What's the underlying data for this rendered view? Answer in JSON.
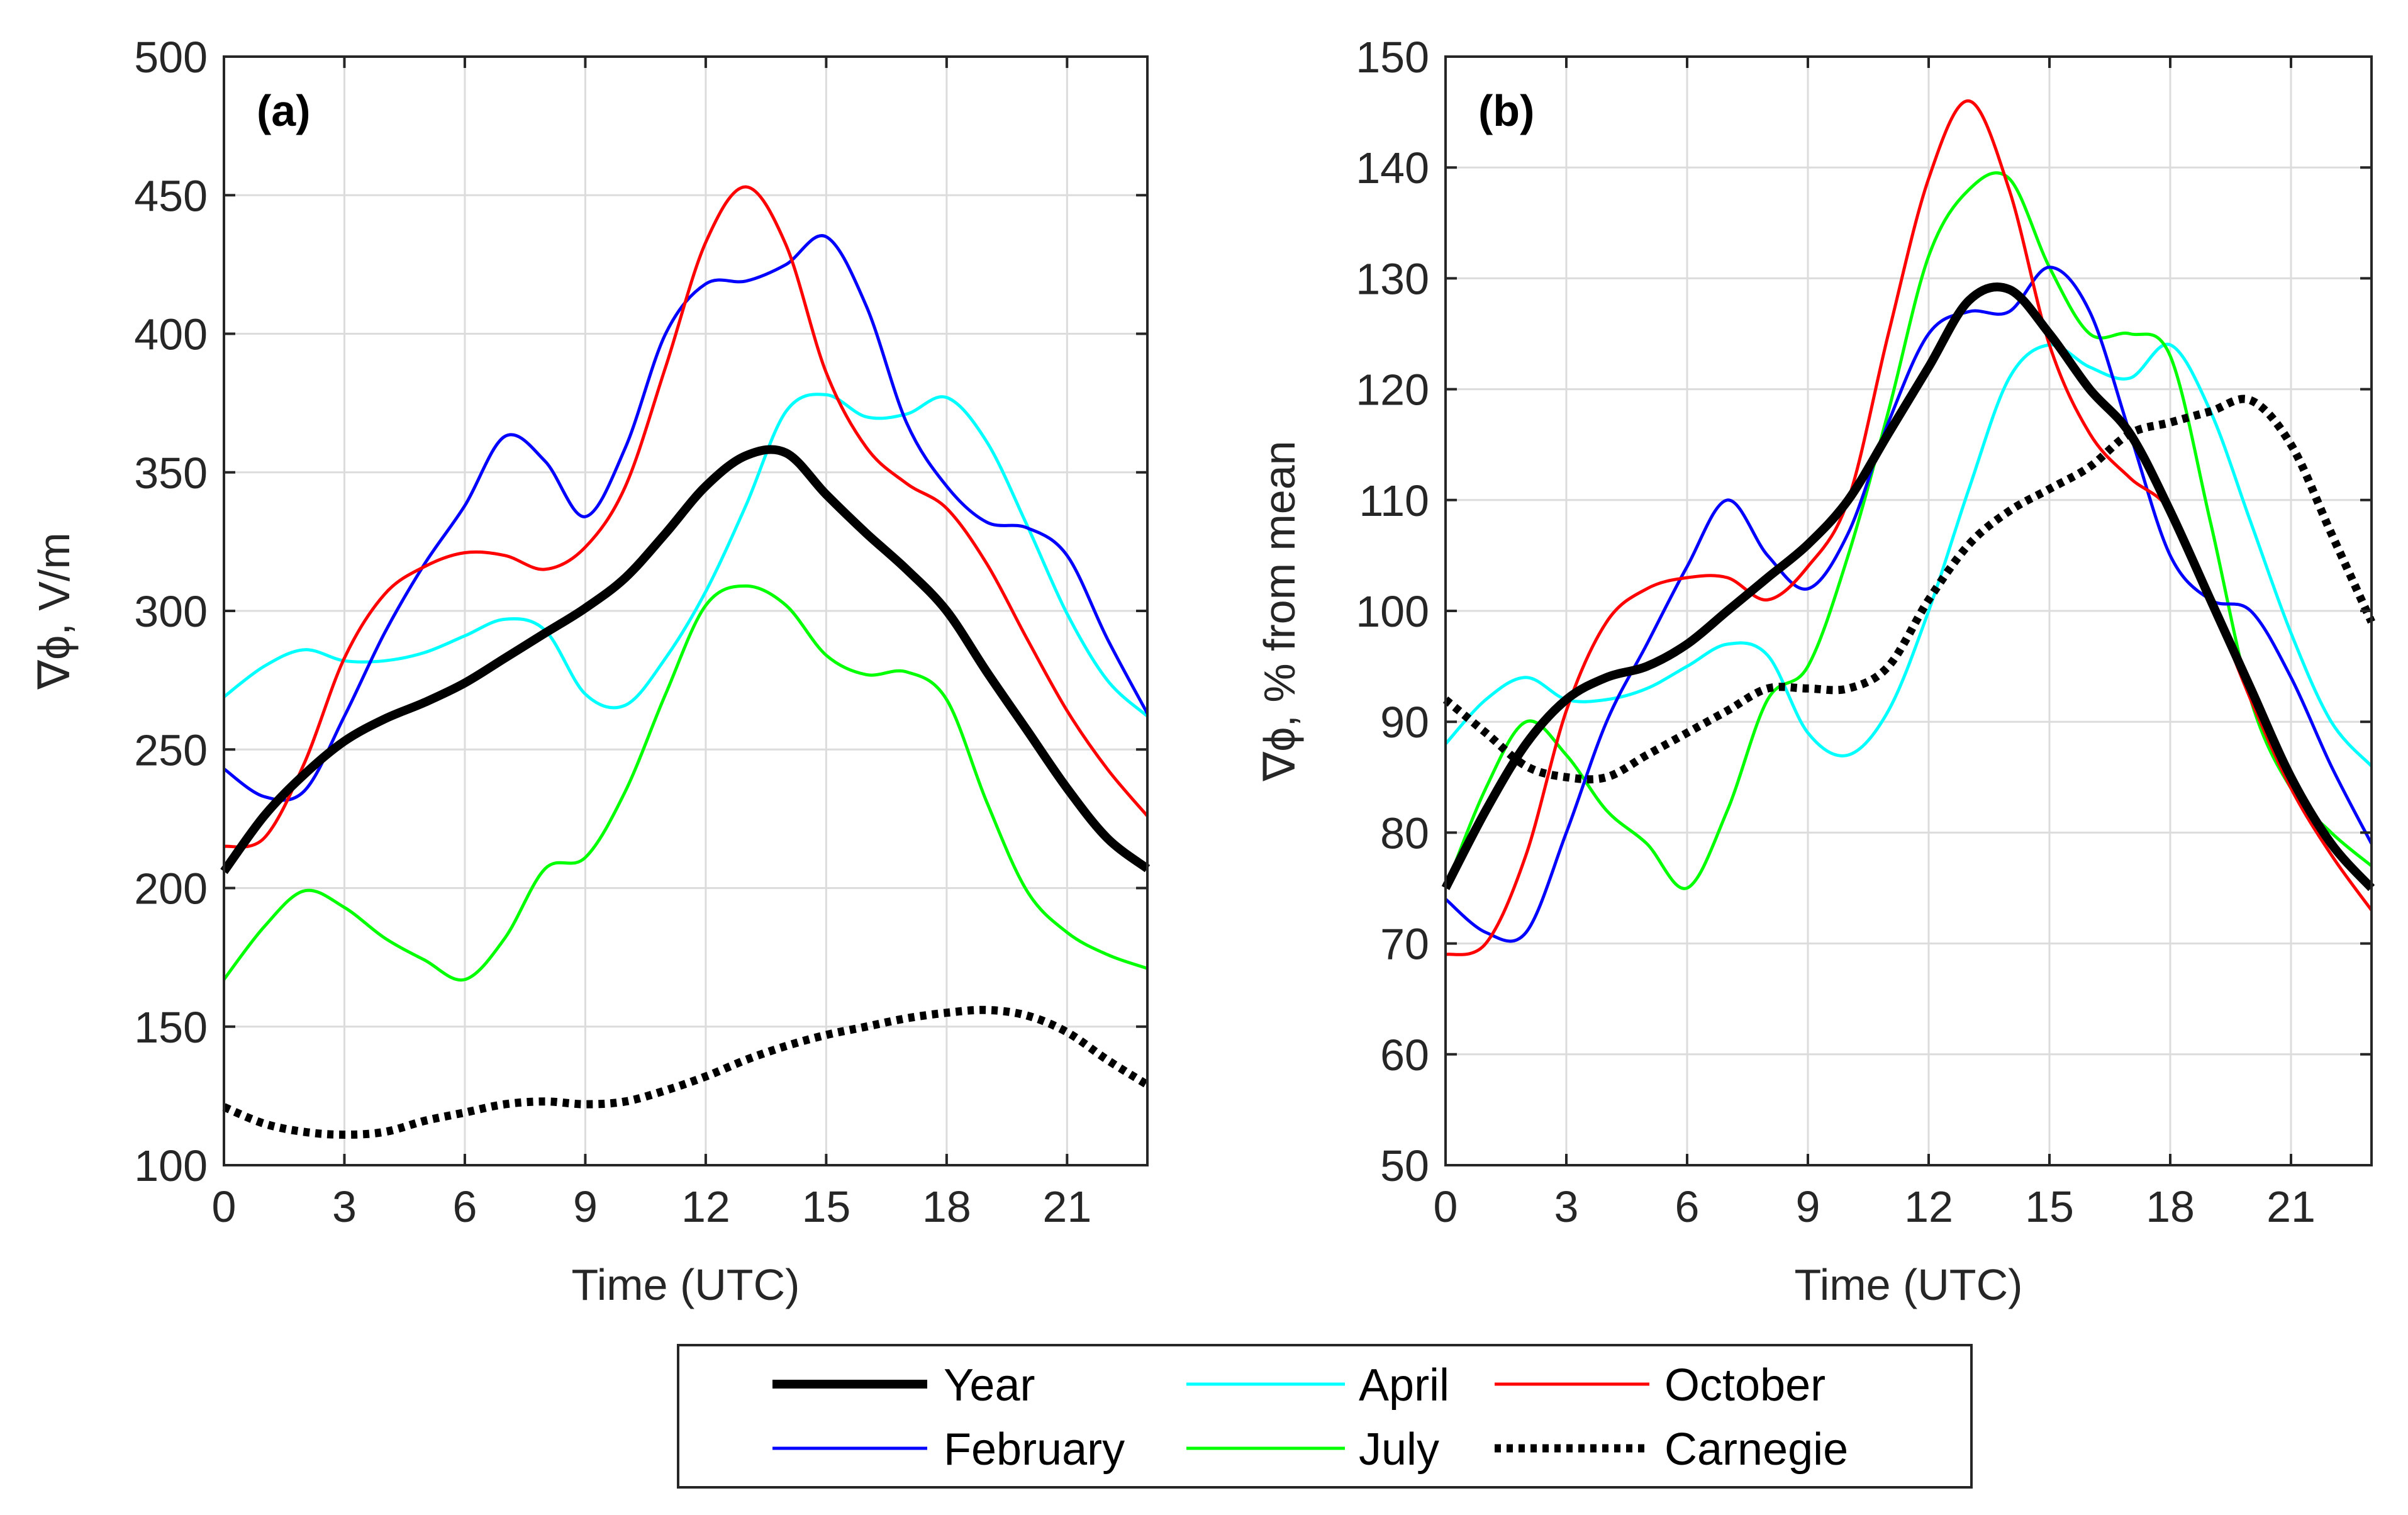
{
  "chart_data": [
    {
      "type": "line",
      "panel_label": "(a)",
      "xlabel": "Time (UTC)",
      "ylabel": "∇ϕ, V/m",
      "xlim": [
        0,
        23
      ],
      "ylim": [
        100,
        500
      ],
      "xticks": [
        0,
        3,
        6,
        9,
        12,
        15,
        18,
        21
      ],
      "yticks": [
        100,
        150,
        200,
        250,
        300,
        350,
        400,
        450,
        500
      ],
      "grid": true,
      "x": [
        0,
        1,
        2,
        3,
        4,
        5,
        6,
        7,
        8,
        9,
        10,
        11,
        12,
        13,
        14,
        15,
        16,
        17,
        18,
        19,
        20,
        21,
        22,
        23
      ],
      "series": [
        {
          "name": "April",
          "color": "#00FFFF",
          "style": "solid",
          "values": [
            269,
            280,
            286,
            282,
            282,
            285,
            291,
            297,
            293,
            270,
            266,
            283,
            307,
            338,
            372,
            378,
            370,
            371,
            377,
            361,
            331,
            299,
            275,
            262
          ]
        },
        {
          "name": "July",
          "color": "#00FF00",
          "style": "solid",
          "values": [
            167,
            186,
            199,
            193,
            182,
            174,
            167,
            182,
            207,
            211,
            235,
            270,
            302,
            309,
            302,
            284,
            277,
            278,
            268,
            231,
            199,
            184,
            176,
            171
          ]
        },
        {
          "name": "February",
          "color": "#0000FF",
          "style": "solid",
          "values": [
            243,
            233,
            235,
            262,
            292,
            317,
            338,
            363,
            354,
            334,
            359,
            400,
            418,
            419,
            425,
            435,
            410,
            368,
            345,
            332,
            330,
            320,
            290,
            263
          ]
        },
        {
          "name": "October",
          "color": "#FF0000",
          "style": "solid",
          "values": [
            215,
            218,
            245,
            283,
            306,
            316,
            321,
            320,
            315,
            323,
            345,
            388,
            433,
            453,
            432,
            386,
            359,
            346,
            337,
            317,
            290,
            264,
            243,
            226
          ]
        },
        {
          "name": "Year",
          "color": "#000000",
          "style": "thick",
          "values": [
            206,
            226,
            241,
            253,
            261,
            267,
            274,
            283,
            292,
            301,
            312,
            328,
            345,
            356,
            357,
            342,
            328,
            315,
            300,
            278,
            257,
            236,
            218,
            207
          ]
        },
        {
          "name": "Carnegie",
          "color": "#000000",
          "style": "dotted",
          "values": [
            121,
            115,
            112,
            111,
            112,
            116,
            119,
            122,
            123,
            122,
            123,
            127,
            132,
            138,
            143,
            147,
            150,
            153,
            155,
            156,
            154,
            148,
            138,
            129
          ]
        }
      ]
    },
    {
      "type": "line",
      "panel_label": "(b)",
      "xlabel": "Time (UTC)",
      "ylabel": "∇ϕ, % from mean",
      "xlim": [
        0,
        23
      ],
      "ylim": [
        50,
        150
      ],
      "xticks": [
        0,
        3,
        6,
        9,
        12,
        15,
        18,
        21
      ],
      "yticks": [
        50,
        60,
        70,
        80,
        90,
        100,
        110,
        120,
        130,
        140,
        150
      ],
      "grid": true,
      "x": [
        0,
        1,
        2,
        3,
        4,
        5,
        6,
        7,
        8,
        9,
        10,
        11,
        12,
        13,
        14,
        15,
        16,
        17,
        18,
        19,
        20,
        21,
        22,
        23
      ],
      "series": [
        {
          "name": "April",
          "color": "#00FFFF",
          "style": "solid",
          "values": [
            88,
            92,
            94,
            92,
            92,
            93,
            95,
            97,
            96,
            89,
            87,
            91,
            100,
            111,
            121,
            124,
            122,
            121,
            124,
            118,
            108,
            98,
            90,
            86
          ]
        },
        {
          "name": "July",
          "color": "#00FF00",
          "style": "solid",
          "values": [
            75,
            84,
            90,
            87,
            82,
            79,
            75,
            82,
            92,
            95,
            105,
            118,
            132,
            138,
            139,
            131,
            125,
            125,
            123,
            108,
            92,
            84,
            80,
            77
          ]
        },
        {
          "name": "February",
          "color": "#0000FF",
          "style": "solid",
          "values": [
            74,
            71,
            71,
            80,
            90,
            97,
            104,
            110,
            105,
            102,
            107,
            117,
            125,
            127,
            127,
            131,
            127,
            116,
            105,
            101,
            100,
            94,
            86,
            79
          ]
        },
        {
          "name": "October",
          "color": "#FF0000",
          "style": "solid",
          "values": [
            69,
            70,
            78,
            91,
            99,
            102,
            103,
            103,
            101,
            104,
            110,
            125,
            139,
            146,
            138,
            124,
            116,
            112,
            109,
            101,
            92,
            84,
            78,
            73
          ]
        },
        {
          "name": "Year",
          "color": "#000000",
          "style": "thick",
          "values": [
            75,
            82,
            88,
            92,
            94,
            95,
            97,
            100,
            103,
            106,
            110,
            116,
            122,
            128,
            129,
            125,
            120,
            116,
            109,
            101,
            93,
            85,
            79,
            75
          ]
        },
        {
          "name": "Carnegie",
          "color": "#000000",
          "style": "dotted",
          "values": [
            92,
            89,
            86,
            85,
            85,
            87,
            89,
            91,
            93,
            93,
            93,
            95,
            101,
            106,
            109,
            111,
            113,
            116,
            117,
            118,
            119,
            115,
            107,
            99
          ]
        }
      ]
    }
  ],
  "legend": {
    "items": [
      {
        "name": "Year",
        "color": "#000000",
        "style": "thick"
      },
      {
        "name": "April",
        "color": "#00FFFF",
        "style": "solid"
      },
      {
        "name": "October",
        "color": "#FF0000",
        "style": "solid"
      },
      {
        "name": "February",
        "color": "#0000FF",
        "style": "solid"
      },
      {
        "name": "July",
        "color": "#00FF00",
        "style": "solid"
      },
      {
        "name": "Carnegie",
        "color": "#000000",
        "style": "dotted"
      }
    ]
  }
}
